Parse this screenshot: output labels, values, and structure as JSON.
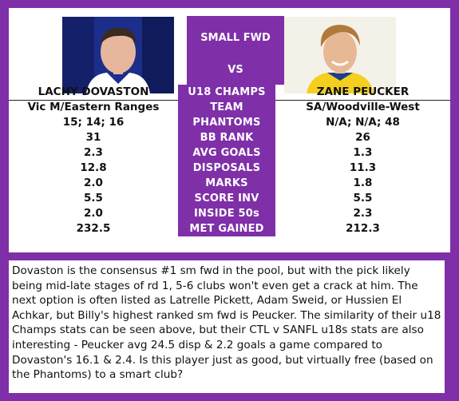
{
  "header": {
    "position_label": "SMALL FWD",
    "vs_label": "VS"
  },
  "players": {
    "left": {
      "name": "LACHY DOVASTON",
      "photo": "player-photo-dovaston"
    },
    "right": {
      "name": "ZANE PEUCKER",
      "photo": "player-photo-peucker"
    }
  },
  "rows": [
    {
      "left": "LACHY DOVASTON",
      "label": "U18 CHAMPS",
      "right": "ZANE PEUCKER"
    },
    {
      "left": "Vic M/Eastern Ranges",
      "label": "TEAM",
      "right": "SA/Woodville-West"
    },
    {
      "left": "15; 14; 16",
      "label": "PHANTOMS",
      "right": "N/A; N/A; 48"
    },
    {
      "left": "31",
      "label": "BB RANK",
      "right": "26"
    },
    {
      "left": "2.3",
      "label": "AVG GOALS",
      "right": "1.3"
    },
    {
      "left": "12.8",
      "label": "DISPOSALS",
      "right": "11.3"
    },
    {
      "left": "2.0",
      "label": "MARKS",
      "right": "1.8"
    },
    {
      "left": "5.5",
      "label": "SCORE INV",
      "right": "5.5"
    },
    {
      "left": "2.0",
      "label": "INSIDE 50s",
      "right": "2.3"
    },
    {
      "left": "232.5",
      "label": "MET GAINED",
      "right": "212.3"
    }
  ],
  "commentary": "Dovaston is the consensus #1 sm fwd in the pool, but with the pick likely being mid-late stages of rd 1, 5-6 clubs won't even get a crack at him. The next option is often listed as Latrelle Pickett, Adam Sweid, or Hussien El Achkar, but Billy's highest ranked sm fwd is Peucker. The similarity of their u18 Champs stats can be seen above, but their CTL v SANFL u18s stats are also interesting - Peucker avg 24.5 disp & 2.2 goals a game compared to Dovaston's 16.1 & 2.4. Is this player just as good, but virtually free (based on the Phantoms) to a smart club?",
  "colors": {
    "accent": "#7f2fa8",
    "panel": "#ffffff"
  }
}
